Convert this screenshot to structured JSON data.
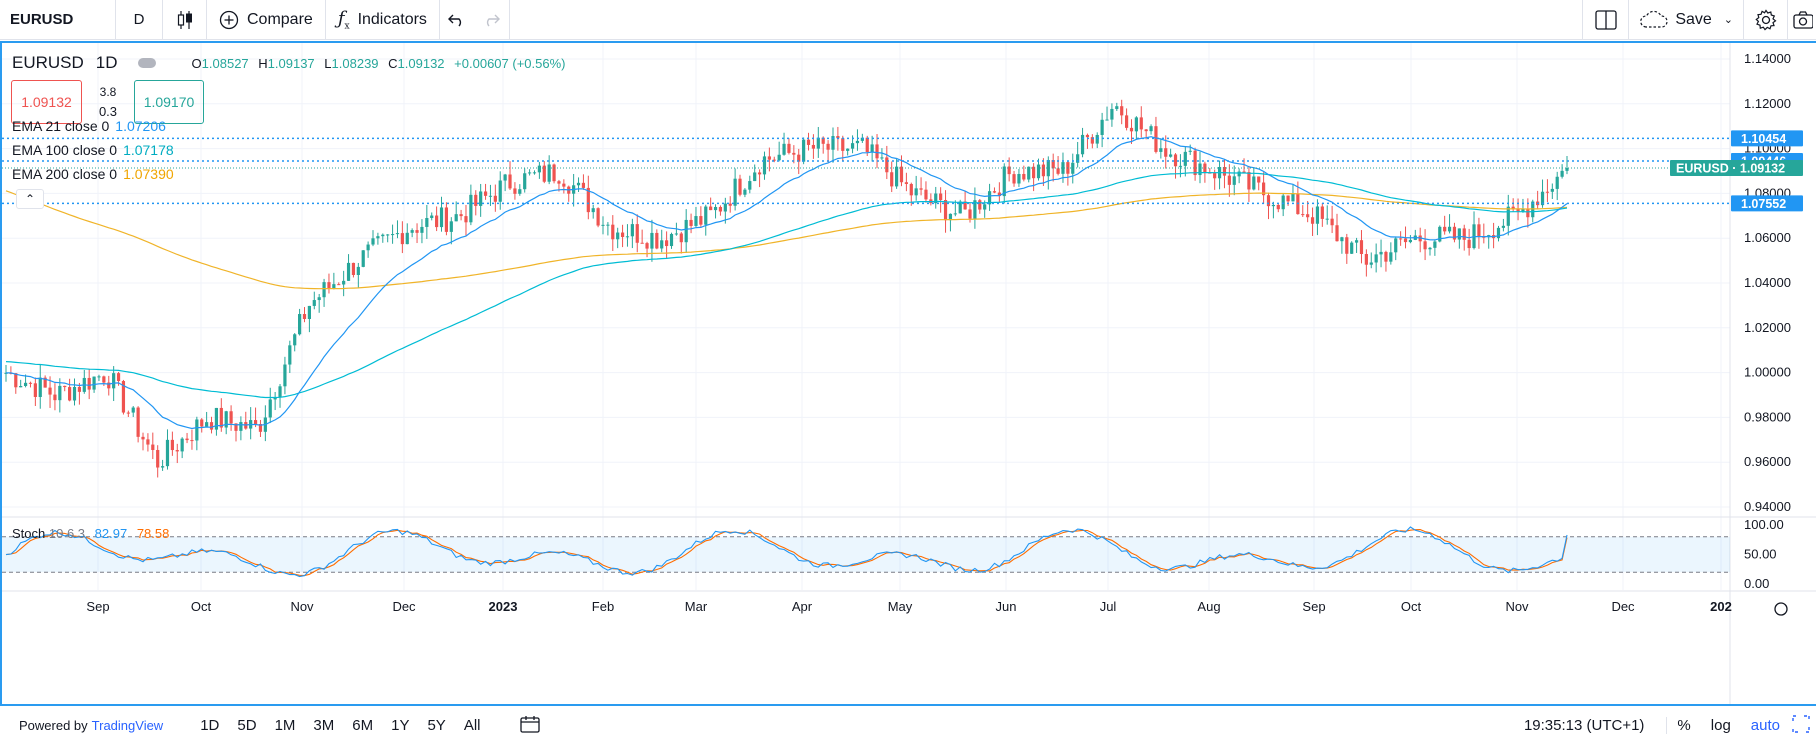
{
  "toolbar": {
    "symbol": "EURUSD",
    "interval": "D",
    "compare_label": "Compare",
    "indicators_label": "Indicators",
    "save_label": "Save"
  },
  "legend": {
    "symbol": "EURUSD",
    "interval": "1D",
    "open_key": "O",
    "open": "1.08527",
    "high_key": "H",
    "high": "1.09137",
    "low_key": "L",
    "low": "1.08239",
    "close_key": "C",
    "close": "1.09132",
    "change": "+0.00607 (+0.56%)",
    "sell_price": "1.09132",
    "buy_price": "1.09170",
    "spread_top": "3.8",
    "spread_bottom": "0.3"
  },
  "indicators": [
    {
      "label": "EMA 21 close 0",
      "value": "1.07206",
      "color": "#2196f3"
    },
    {
      "label": "EMA 100 close 0",
      "value": "1.07178",
      "color": "#00bcd4"
    },
    {
      "label": "EMA 200 close 0",
      "value": "1.07390",
      "color": "#f0b429"
    }
  ],
  "stoch": {
    "label": "Stoch",
    "params": "10 6 3",
    "k_value": "82.97",
    "d_value": "78.58",
    "k_color": "#2196f3",
    "d_color": "#ff6d00"
  },
  "price_scale": {
    "ticks": [
      "1.14000",
      "1.12000",
      "1.10000",
      "1.08000",
      "1.06000",
      "1.04000",
      "1.02000",
      "1.00000",
      "0.98000",
      "0.96000",
      "0.94000"
    ],
    "tick_values": [
      1.14,
      1.12,
      1.1,
      1.08,
      1.06,
      1.04,
      1.02,
      1.0,
      0.98,
      0.96,
      0.94
    ],
    "stoch_ticks": [
      "100.00",
      "50.00",
      "0.00"
    ],
    "price_labels": [
      {
        "text": "1.10454",
        "value": 1.10454,
        "color": "#2196f3"
      },
      {
        "text": "1.09446",
        "value": 1.09446,
        "color": "#2196f3"
      },
      {
        "text": "EURUSD · 1.09132",
        "value": 1.09132,
        "color": "#26a69a"
      },
      {
        "text": "1.07552",
        "value": 1.07552,
        "color": "#2196f3"
      }
    ]
  },
  "time_scale": {
    "labels": [
      "Sep",
      "Oct",
      "Nov",
      "Dec",
      "2023",
      "Feb",
      "Mar",
      "Apr",
      "May",
      "Jun",
      "Jul",
      "Aug",
      "Sep",
      "Oct",
      "Nov",
      "Dec",
      "202"
    ]
  },
  "bottom": {
    "powered_by": "Powered by",
    "brand": "TradingView",
    "ranges": [
      "1D",
      "5D",
      "1M",
      "3M",
      "6M",
      "1Y",
      "5Y",
      "All"
    ],
    "time": "19:35:13 (UTC+1)",
    "percent": "%",
    "log": "log",
    "auto": "auto"
  },
  "chart_data": {
    "type": "candlestick",
    "symbol": "EURUSD",
    "interval": "1D",
    "x_axis_labels": [
      "Sep",
      "Oct",
      "Nov",
      "Dec",
      "2023",
      "Feb",
      "Mar",
      "Apr",
      "May",
      "Jun",
      "Jul",
      "Aug",
      "Sep",
      "Oct",
      "Nov",
      "Dec"
    ],
    "ylim": [
      0.94,
      1.14
    ],
    "close_path": [
      {
        "t": "Aug",
        "v": 1.0
      },
      {
        "t": "Sep",
        "v": 0.99
      },
      {
        "t": "Sep",
        "v": 1.0
      },
      {
        "t": "Oct",
        "v": 0.96
      },
      {
        "t": "Oct",
        "v": 0.98
      },
      {
        "t": "Nov",
        "v": 0.975
      },
      {
        "t": "Nov",
        "v": 1.03
      },
      {
        "t": "Dec",
        "v": 1.05
      },
      {
        "t": "Dec",
        "v": 1.065
      },
      {
        "t": "2023",
        "v": 1.07
      },
      {
        "t": "Jan",
        "v": 1.085
      },
      {
        "t": "Feb",
        "v": 1.09
      },
      {
        "t": "Feb",
        "v": 1.065
      },
      {
        "t": "Mar",
        "v": 1.06
      },
      {
        "t": "Mar",
        "v": 1.07
      },
      {
        "t": "Apr",
        "v": 1.095
      },
      {
        "t": "Apr",
        "v": 1.1
      },
      {
        "t": "May",
        "v": 1.1
      },
      {
        "t": "May",
        "v": 1.08
      },
      {
        "t": "Jun",
        "v": 1.07
      },
      {
        "t": "Jun",
        "v": 1.09
      },
      {
        "t": "Jul",
        "v": 1.09
      },
      {
        "t": "Jul",
        "v": 1.12
      },
      {
        "t": "Aug",
        "v": 1.1
      },
      {
        "t": "Aug",
        "v": 1.09
      },
      {
        "t": "Sep",
        "v": 1.08
      },
      {
        "t": "Sep",
        "v": 1.07
      },
      {
        "t": "Oct",
        "v": 1.05
      },
      {
        "t": "Oct",
        "v": 1.06
      },
      {
        "t": "Nov",
        "v": 1.06
      },
      {
        "t": "Nov",
        "v": 1.07
      },
      {
        "t": "Nov",
        "v": 1.0913
      }
    ],
    "ema_21_last": 1.07206,
    "ema_100_last": 1.07178,
    "ema_200_last": 1.0739,
    "horizontal_lines": [
      1.10454,
      1.09446,
      1.07552
    ],
    "stoch_k_last": 82.97,
    "stoch_d_last": 78.58,
    "stoch_bands": [
      80,
      20
    ]
  }
}
